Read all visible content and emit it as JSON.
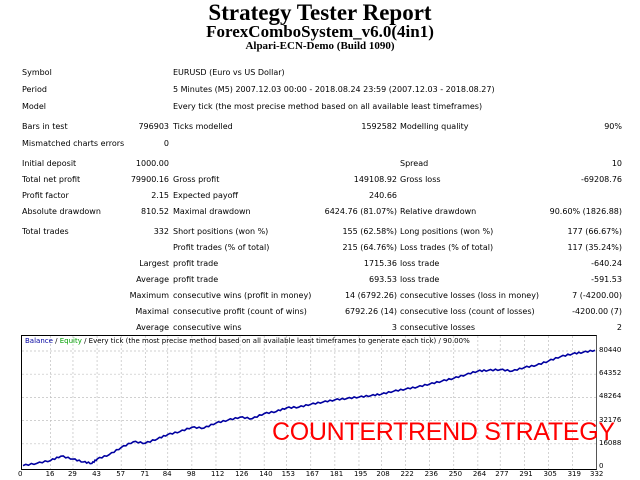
{
  "header": {
    "title": "Strategy Tester Report",
    "ea_name": "ForexComboSystem_v6.0(4in1)",
    "server": "Alpari-ECN-Demo (Build 1090)"
  },
  "info": {
    "symbol_label": "Symbol",
    "symbol_value": "EURUSD (Euro vs US Dollar)",
    "period_label": "Period",
    "period_value": "5 Minutes (M5) 2007.12.03 00:00 - 2018.08.24 23:59 (2007.12.03 - 2018.08.27)",
    "model_label": "Model",
    "model_value": "Every tick (the most precise method based on all available least timeframes)"
  },
  "stats": {
    "bars_label": "Bars in test",
    "bars_value": "796903",
    "ticks_label": "Ticks modelled",
    "ticks_value": "1592582",
    "quality_label": "Modelling quality",
    "quality_value": "90%",
    "mismatch_label": "Mismatched charts errors",
    "mismatch_value": "0",
    "deposit_label": "Initial deposit",
    "deposit_value": "1000.00",
    "spread_label": "Spread",
    "spread_value": "10",
    "net_label": "Total net profit",
    "net_value": "79900.16",
    "gross_profit_label": "Gross profit",
    "gross_profit_value": "149108.92",
    "gross_loss_label": "Gross loss",
    "gross_loss_value": "-69208.76",
    "pf_label": "Profit factor",
    "pf_value": "2.15",
    "payoff_label": "Expected payoff",
    "payoff_value": "240.66",
    "abs_dd_label": "Absolute drawdown",
    "abs_dd_value": "810.52",
    "max_dd_label": "Maximal drawdown",
    "max_dd_value": "6424.76 (81.07%)",
    "rel_dd_label": "Relative drawdown",
    "rel_dd_value": "90.60% (1826.88)"
  },
  "trades": {
    "total_label": "Total trades",
    "total_value": "332",
    "short_label": "Short positions (won %)",
    "short_value": "155 (62.58%)",
    "long_label": "Long positions (won %)",
    "long_value": "177 (66.67%)",
    "profit_trades_label": "Profit trades (% of total)",
    "profit_trades_value": "215 (64.76%)",
    "loss_trades_label": "Loss trades (% of total)",
    "loss_trades_value": "117 (35.24%)",
    "largest_prefix": "Largest",
    "largest_profit_label": "profit trade",
    "largest_profit_value": "1715.36",
    "largest_loss_label": "loss trade",
    "largest_loss_value": "-640.24",
    "average_prefix": "Average",
    "avg_profit_label": "profit trade",
    "avg_profit_value": "693.53",
    "avg_loss_label": "loss trade",
    "avg_loss_value": "-591.53",
    "maximum_prefix": "Maximum",
    "max_wins_label": "consecutive wins (profit in money)",
    "max_wins_value": "14 (6792.26)",
    "max_losses_label": "consecutive losses (loss in money)",
    "max_losses_value": "7 (-4200.00)",
    "maximal_prefix": "Maximal",
    "maximal_profit_label": "consecutive profit (count of wins)",
    "maximal_profit_value": "6792.26 (14)",
    "maximal_loss_label": "consecutive loss (count of losses)",
    "maximal_loss_value": "-4200.00 (7)",
    "average2_prefix": "Average",
    "avg_wins_label": "consecutive wins",
    "avg_wins_value": "3",
    "avg_losses_label": "consecutive losses",
    "avg_losses_value": "2"
  },
  "chart": {
    "legend_balance": "Balance",
    "legend_sep1": " / ",
    "legend_equity": "Equity",
    "legend_rest": " / Every tick (the most precise method based on all available least timeframes to generate each tick) / 90.00%",
    "overlay_text": "COUNTERTREND STRATEGY",
    "balance_color": "#0000a0",
    "equity_color": "#00a000",
    "overlay_color": "#ff0000"
  },
  "chart_data": {
    "type": "line",
    "title": "Balance / Equity / Every tick (the most precise method based on all available least timeframes to generate each tick) / 90.00%",
    "xlabel": "",
    "ylabel": "",
    "x_ticks": [
      0,
      16,
      29,
      43,
      57,
      71,
      84,
      98,
      112,
      126,
      140,
      153,
      167,
      181,
      195,
      208,
      222,
      236,
      250,
      264,
      277,
      291,
      305,
      319,
      332
    ],
    "y_ticks": [
      0,
      16088,
      32176,
      48264,
      64352,
      80440
    ],
    "ylim": [
      0,
      80440
    ],
    "xlim": [
      0,
      332
    ],
    "grid": true,
    "series": [
      {
        "name": "Balance",
        "x": [
          0,
          8,
          16,
          22,
          29,
          35,
          40,
          43,
          50,
          57,
          64,
          71,
          78,
          84,
          91,
          98,
          105,
          112,
          119,
          126,
          133,
          140,
          147,
          153,
          160,
          167,
          174,
          181,
          188,
          195,
          202,
          208,
          215,
          222,
          229,
          236,
          243,
          250,
          257,
          264,
          270,
          277,
          284,
          291,
          298,
          305,
          312,
          319,
          325,
          332
        ],
        "values": [
          1000,
          2500,
          4500,
          7500,
          5500,
          3500,
          2500,
          5500,
          8500,
          13500,
          17500,
          16500,
          19500,
          22500,
          24500,
          27500,
          27000,
          30500,
          32500,
          34500,
          33500,
          37000,
          38500,
          41000,
          41500,
          43500,
          45000,
          46500,
          47500,
          48500,
          49500,
          50500,
          52500,
          54000,
          55500,
          57500,
          59500,
          61500,
          64000,
          66500,
          67000,
          67500,
          66500,
          69000,
          70500,
          73500,
          76500,
          78500,
          79500,
          80900
        ]
      }
    ],
    "annotations": [
      "COUNTERTREND STRATEGY"
    ],
    "legend_position": "top-left"
  }
}
